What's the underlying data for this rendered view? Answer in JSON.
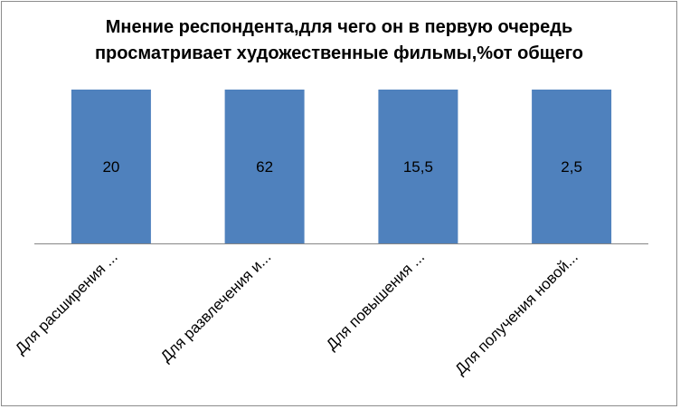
{
  "chart_data": {
    "type": "bar",
    "title": "Мнение респондента,для чего он в первую очередь просматривает художественные фильмы,%от общего",
    "categories": [
      "Для расширения ...",
      "Для развлечения и...",
      "Для повышения ...",
      "Для получения новой..."
    ],
    "values": [
      20,
      62,
      15.5,
      2.5
    ],
    "data_labels": [
      "20",
      "62",
      "15,5",
      "2,5"
    ],
    "bar_color": "#4f81bd",
    "grid": false,
    "legend": "none",
    "xlabel": "",
    "ylabel": ""
  }
}
